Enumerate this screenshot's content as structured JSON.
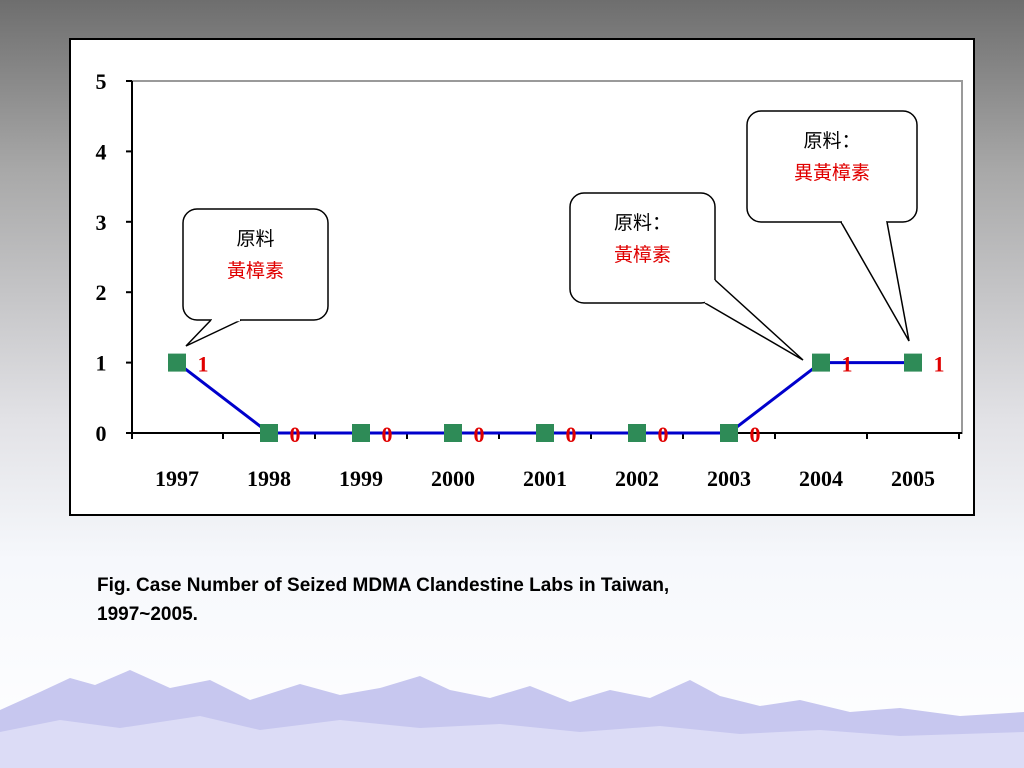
{
  "chart_data": {
    "type": "line",
    "categories": [
      "1997",
      "1998",
      "1999",
      "2000",
      "2001",
      "2002",
      "2003",
      "2004",
      "2005"
    ],
    "values": [
      1,
      0,
      0,
      0,
      0,
      0,
      0,
      1,
      1
    ],
    "y_ticks": [
      "0",
      "1",
      "2",
      "3",
      "4",
      "5"
    ],
    "ylim": [
      0,
      5
    ],
    "grid": false,
    "legend": "none",
    "colors": {
      "line": "#0000cc",
      "marker": "#2e8b57",
      "data_label": "#e00000"
    },
    "annotations": [
      {
        "anchor_category": "1997",
        "line1": "原料",
        "line2": "黃樟素"
      },
      {
        "anchor_category": "2004",
        "line1": "原料：",
        "line2": "黃樟素"
      },
      {
        "anchor_category": "2005",
        "line1": "原料：",
        "line2": "異黃樟素"
      }
    ]
  },
  "caption": {
    "line1": "Fig.   Case Number of Seized MDMA Clandestine Labs in Taiwan,",
    "line2": "1997~2005."
  }
}
